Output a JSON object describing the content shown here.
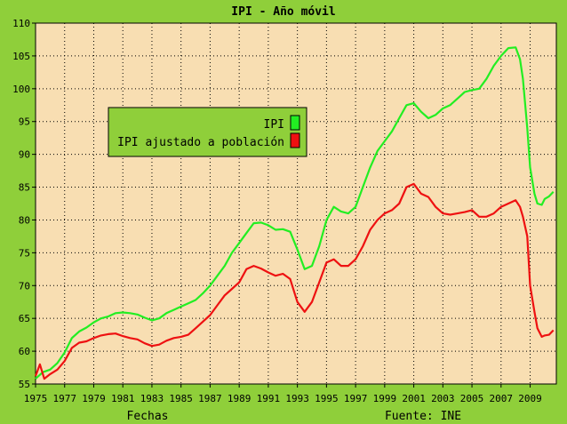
{
  "chart_data": {
    "type": "line",
    "title": "IPI - Año móvil",
    "xlabel": "Fechas",
    "source": "Fuente: INE",
    "xlim": [
      1975,
      2010.8
    ],
    "ylim": [
      55,
      110
    ],
    "x_ticks": [
      "1975",
      "1977",
      "1979",
      "1981",
      "1983",
      "1985",
      "1987",
      "1989",
      "1991",
      "1993",
      "1995",
      "1997",
      "1999",
      "2001",
      "2003",
      "2005",
      "2007",
      "2009"
    ],
    "y_ticks": [
      "55",
      "60",
      "65",
      "70",
      "75",
      "80",
      "85",
      "90",
      "95",
      "100",
      "105",
      "110"
    ],
    "grid": true,
    "legend_position": "upper-left",
    "series": [
      {
        "name": "IPI",
        "color": "#22ee22",
        "x": [
          1975.0,
          1975.5,
          1976.0,
          1976.5,
          1977.0,
          1977.5,
          1978.0,
          1978.5,
          1979.0,
          1979.5,
          1980.0,
          1980.5,
          1981.0,
          1981.5,
          1982.0,
          1982.5,
          1983.0,
          1983.5,
          1984.0,
          1984.5,
          1985.0,
          1985.5,
          1986.0,
          1986.5,
          1987.0,
          1987.5,
          1988.0,
          1988.5,
          1989.0,
          1989.5,
          1990.0,
          1990.5,
          1991.0,
          1991.5,
          1992.0,
          1992.5,
          1993.0,
          1993.5,
          1994.0,
          1994.5,
          1995.0,
          1995.5,
          1996.0,
          1996.5,
          1997.0,
          1997.5,
          1998.0,
          1998.5,
          1999.0,
          1999.5,
          2000.0,
          2000.5,
          2001.0,
          2001.5,
          2002.0,
          2002.5,
          2003.0,
          2003.5,
          2004.0,
          2004.5,
          2005.0,
          2005.5,
          2006.0,
          2006.5,
          2007.0,
          2007.5,
          2008.0,
          2008.3,
          2008.5,
          2008.8,
          2009.0,
          2009.3,
          2009.5,
          2009.8,
          2010.0,
          2010.3,
          2010.6
        ],
        "values": [
          55.8,
          56.8,
          57.2,
          58.2,
          59.8,
          62.0,
          63.0,
          63.6,
          64.4,
          65.0,
          65.3,
          65.8,
          65.9,
          65.8,
          65.6,
          65.1,
          64.7,
          65.0,
          65.8,
          66.3,
          66.8,
          67.3,
          67.8,
          68.8,
          70.0,
          71.5,
          73.0,
          75.0,
          76.5,
          78.0,
          79.5,
          79.6,
          79.2,
          78.5,
          78.6,
          78.2,
          75.5,
          72.5,
          73.0,
          76.0,
          80.0,
          82.0,
          81.3,
          81.0,
          82.0,
          85.0,
          88.0,
          90.5,
          92.0,
          93.5,
          95.5,
          97.5,
          97.8,
          96.5,
          95.5,
          96.0,
          97.0,
          97.5,
          98.5,
          99.5,
          99.8,
          100.0,
          101.5,
          103.5,
          105.0,
          106.2,
          106.3,
          104.5,
          101.5,
          94.0,
          88.0,
          84.0,
          82.5,
          82.3,
          83.2,
          83.6,
          84.3
        ]
      },
      {
        "name": "IPI ajustado a población",
        "color": "#ee1111",
        "x": [
          1975.0,
          1975.3,
          1975.6,
          1976.0,
          1976.5,
          1977.0,
          1977.5,
          1978.0,
          1978.5,
          1979.0,
          1979.5,
          1980.0,
          1980.5,
          1981.0,
          1981.5,
          1982.0,
          1982.5,
          1983.0,
          1983.5,
          1984.0,
          1984.5,
          1985.0,
          1985.5,
          1986.0,
          1986.5,
          1987.0,
          1987.5,
          1988.0,
          1988.5,
          1989.0,
          1989.5,
          1990.0,
          1990.5,
          1991.0,
          1991.5,
          1992.0,
          1992.5,
          1993.0,
          1993.5,
          1994.0,
          1994.5,
          1995.0,
          1995.5,
          1996.0,
          1996.5,
          1997.0,
          1997.5,
          1998.0,
          1998.5,
          1999.0,
          1999.5,
          2000.0,
          2000.5,
          2001.0,
          2001.5,
          2002.0,
          2002.5,
          2003.0,
          2003.5,
          2004.0,
          2004.5,
          2005.0,
          2005.5,
          2006.0,
          2006.5,
          2007.0,
          2007.5,
          2008.0,
          2008.3,
          2008.5,
          2008.8,
          2009.0,
          2009.3,
          2009.5,
          2009.8,
          2010.0,
          2010.3,
          2010.6
        ],
        "values": [
          56.2,
          58.0,
          55.8,
          56.5,
          57.2,
          58.5,
          60.5,
          61.3,
          61.5,
          62.0,
          62.4,
          62.6,
          62.7,
          62.3,
          62.0,
          61.8,
          61.2,
          60.8,
          61.0,
          61.6,
          62.0,
          62.2,
          62.5,
          63.5,
          64.5,
          65.5,
          67.0,
          68.5,
          69.5,
          70.5,
          72.5,
          73.0,
          72.6,
          72.0,
          71.5,
          71.8,
          71.0,
          67.5,
          66.0,
          67.5,
          70.5,
          73.5,
          74.0,
          73.0,
          73.0,
          74.0,
          76.0,
          78.5,
          80.0,
          81.0,
          81.5,
          82.5,
          85.0,
          85.5,
          84.0,
          83.5,
          82.0,
          81.0,
          80.8,
          81.0,
          81.2,
          81.5,
          80.5,
          80.5,
          81.0,
          82.0,
          82.5,
          83.0,
          82.0,
          80.5,
          77.5,
          70.0,
          66.0,
          63.5,
          62.2,
          62.4,
          62.5,
          63.2
        ]
      }
    ]
  }
}
